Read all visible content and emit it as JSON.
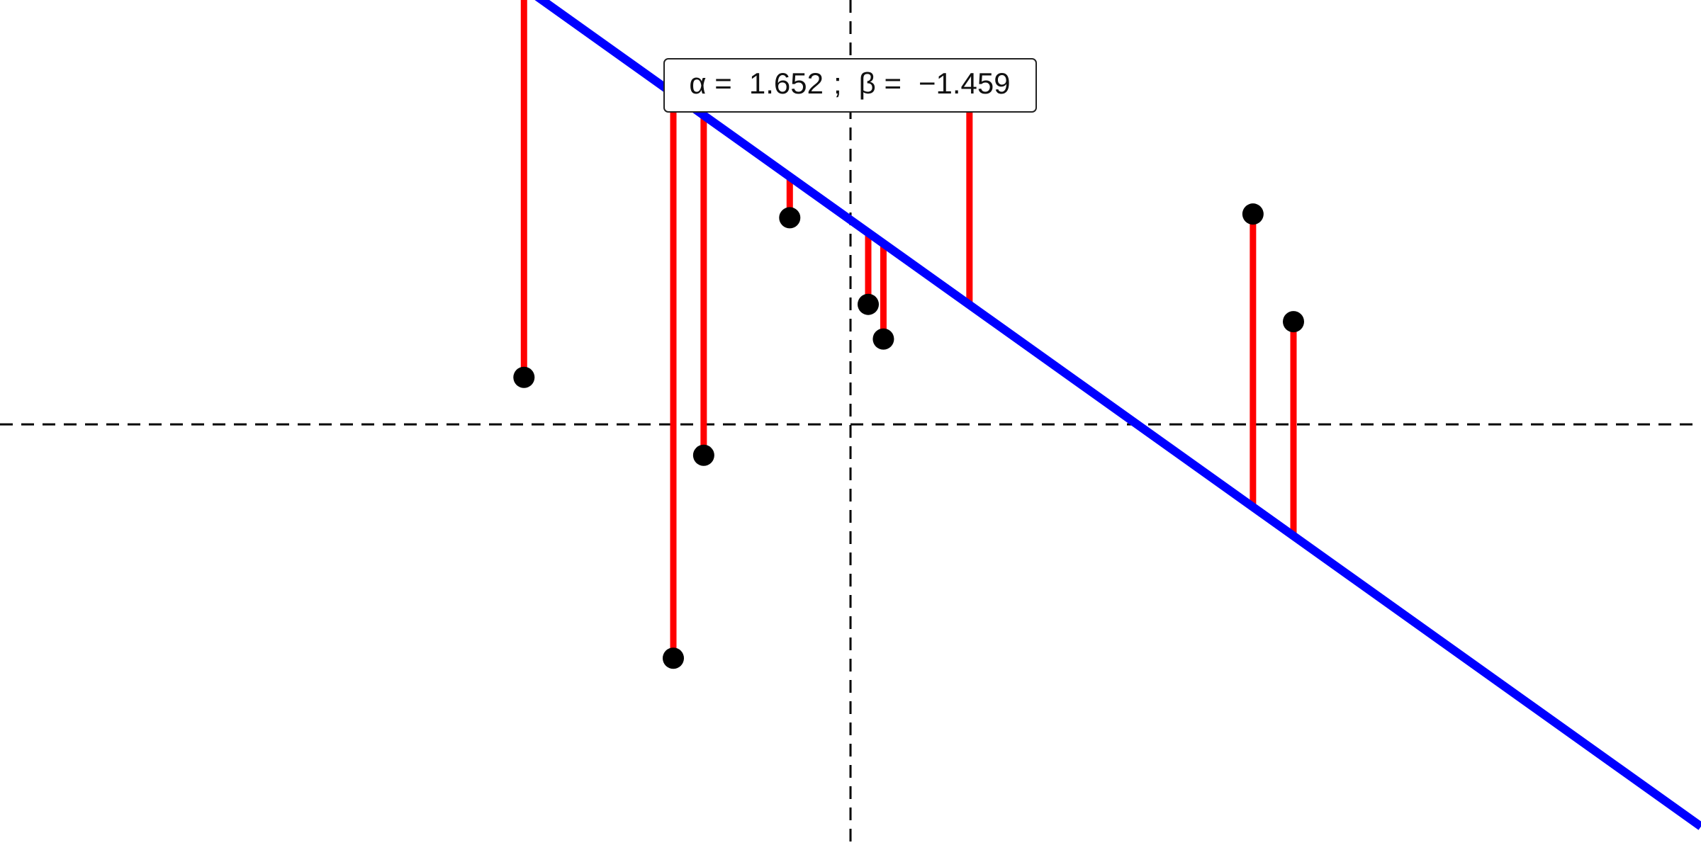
{
  "chart_data": {
    "type": "scatter",
    "x": [
      -1.29,
      -0.7,
      -0.58,
      -0.24,
      0.07,
      0.13,
      0.47,
      1.59,
      1.75
    ],
    "y": [
      0.38,
      -1.89,
      -0.25,
      1.67,
      0.97,
      0.69,
      2.77,
      1.7,
      0.83
    ],
    "point_color": "#000000",
    "residual_color": "#ff0000",
    "xlim": [
      -3.36,
      3.36
    ],
    "ylim": [
      -3.44,
      3.43
    ],
    "fit": {
      "alpha_name": "α =",
      "alpha": 1.652,
      "separator": ";",
      "beta_name": "β =",
      "beta": -1.459,
      "beta_label": "−1.459",
      "color": "#0000ff"
    }
  }
}
